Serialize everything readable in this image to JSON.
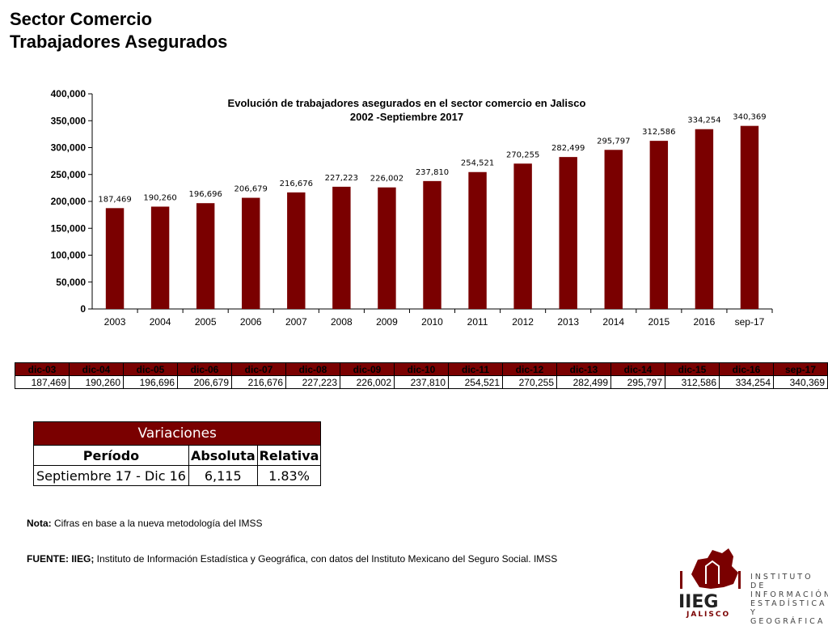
{
  "header": {
    "title": "Sector Comercio",
    "subtitle": "Trabajadores Asegurados"
  },
  "colors": {
    "bar": "#7a0000",
    "header_fill": "#7a0000"
  },
  "chart_data": {
    "type": "bar",
    "title": "Evolución de trabajadores asegurados en el sector comercio en Jalisco",
    "subtitle": "2002 -Septiembre 2017",
    "categories": [
      "2003",
      "2004",
      "2005",
      "2006",
      "2007",
      "2008",
      "2009",
      "2010",
      "2011",
      "2012",
      "2013",
      "2014",
      "2015",
      "2016",
      "sep-17"
    ],
    "values": [
      187469,
      190260,
      196696,
      206679,
      216676,
      227223,
      226002,
      237810,
      254521,
      270255,
      282499,
      295797,
      312586,
      334254,
      340369
    ],
    "value_labels": [
      "187,469",
      "190,260",
      "196,696",
      "206,679",
      "216,676",
      "227,223",
      "226,002",
      "237,810",
      "254,521",
      "270,255",
      "282,499",
      "295,797",
      "312,586",
      "334,254",
      "340,369"
    ],
    "ylim": [
      0,
      400000
    ],
    "yticks": [
      0,
      50000,
      100000,
      150000,
      200000,
      250000,
      300000,
      350000,
      400000
    ],
    "ytick_labels": [
      "0",
      "50,000",
      "100,000",
      "150,000",
      "200,000",
      "250,000",
      "300,000",
      "350,000",
      "400,000"
    ],
    "xlabel": "",
    "ylabel": "",
    "grid": false
  },
  "table": {
    "headers": [
      "dic-03",
      "dic-04",
      "dic-05",
      "dic-06",
      "dic-07",
      "dic-08",
      "dic-09",
      "dic-10",
      "dic-11",
      "dic-12",
      "dic-13",
      "dic-14",
      "dic-15",
      "dic-16",
      "sep-17"
    ],
    "values": [
      "187,469",
      "190,260",
      "196,696",
      "206,679",
      "216,676",
      "227,223",
      "226,002",
      "237,810",
      "254,521",
      "270,255",
      "282,499",
      "295,797",
      "312,586",
      "334,254",
      "340,369"
    ]
  },
  "variaciones": {
    "title": "Variaciones",
    "col_periodo": "Período",
    "col_absoluta": "Absoluta",
    "col_relativa": "Relativa",
    "periodo": "Septiembre 17 - Dic 16",
    "absoluta": "6,115",
    "relativa": "1.83%"
  },
  "note": {
    "label": "Nota:",
    "text": " Cifras en base a la nueva metodología del IMSS"
  },
  "source": {
    "label": "FUENTE: IIEG;",
    "text": " Instituto de Información Estadística y Geográfica, con datos del Instituto Mexicano del Seguro Social. IMSS"
  },
  "logo": {
    "lines": [
      "INSTITUTO DE",
      "INFORMACIÓN",
      "ESTADÍSTICA Y",
      "GEOGRÁFICA"
    ],
    "brand": "IIEG",
    "sub": "JALISCO"
  }
}
